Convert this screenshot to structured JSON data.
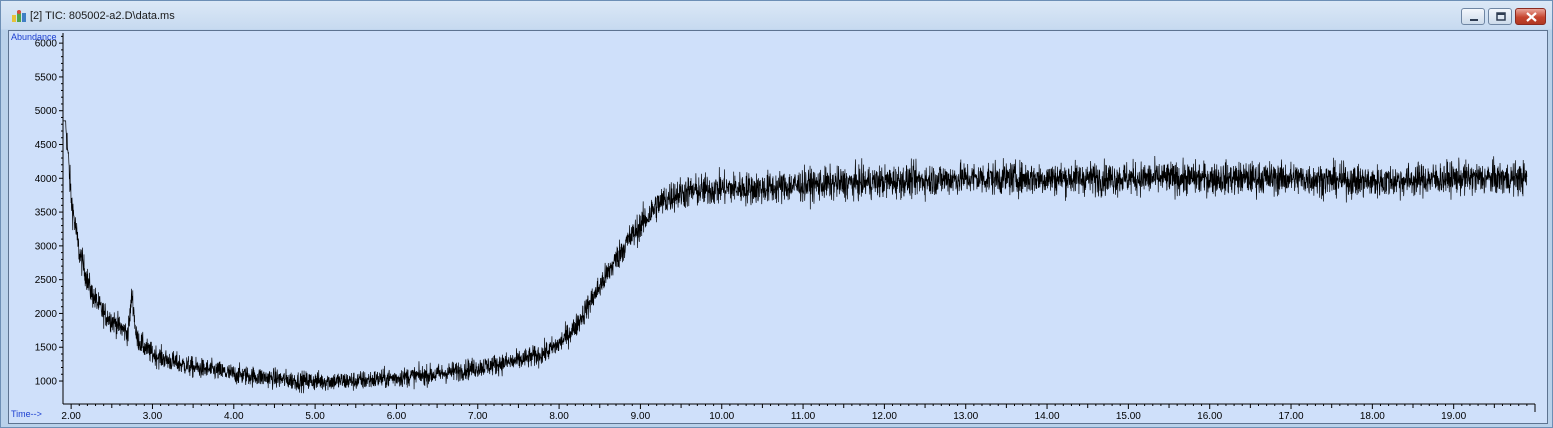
{
  "window": {
    "title": "[2] TIC: 805002-a2.D\\data.ms",
    "controls": [
      "minimize-icon",
      "maximize-icon",
      "close-icon"
    ]
  },
  "colors": {
    "plot_background": "#cfe0fa",
    "trace": "#000000",
    "axis_label": "#1c3fd0"
  },
  "chart_data": {
    "type": "line",
    "title": "",
    "xlabel": "Time-->",
    "ylabel": "Abundance",
    "xlim": [
      1.9,
      20.0
    ],
    "ylim": [
      660,
      6150
    ],
    "x_ticks": [
      "2.00",
      "3.00",
      "4.00",
      "5.00",
      "6.00",
      "7.00",
      "8.00",
      "9.00",
      "10.00",
      "11.00",
      "12.00",
      "13.00",
      "14.00",
      "15.00",
      "16.00",
      "17.00",
      "18.00",
      "19.00"
    ],
    "y_ticks": [
      "1000",
      "1500",
      "2000",
      "2500",
      "3000",
      "3500",
      "4000",
      "4500",
      "5000",
      "5500",
      "6000"
    ],
    "grid": false,
    "legend": "none",
    "series": [
      {
        "x": [
          1.9,
          2.0,
          2.1,
          2.25,
          2.4,
          2.6,
          2.7,
          2.75,
          2.8,
          2.9,
          3.0,
          3.2,
          3.5,
          3.8,
          4.0,
          4.4,
          4.8,
          5.0,
          5.5,
          6.0,
          6.5,
          7.0,
          7.5,
          7.8,
          8.0,
          8.2,
          8.4,
          8.6,
          8.8,
          9.0,
          9.2,
          9.4,
          9.6,
          10.0,
          10.5,
          11.0,
          12.0,
          13.0,
          14.0,
          15.0,
          16.0,
          17.0,
          18.0,
          19.0,
          19.9
        ],
        "values": [
          5400,
          3700,
          2900,
          2300,
          2000,
          1800,
          1700,
          2300,
          1650,
          1500,
          1400,
          1300,
          1200,
          1150,
          1100,
          1050,
          1000,
          1000,
          1000,
          1050,
          1100,
          1200,
          1300,
          1400,
          1550,
          1800,
          2200,
          2600,
          3000,
          3300,
          3600,
          3750,
          3800,
          3850,
          3850,
          3900,
          3950,
          4000,
          4000,
          4000,
          4000,
          4000,
          3950,
          4000,
          4000
        ],
        "noise_amplitude": 220,
        "peak_max": 4850,
        "trough_min": 720
      }
    ]
  }
}
